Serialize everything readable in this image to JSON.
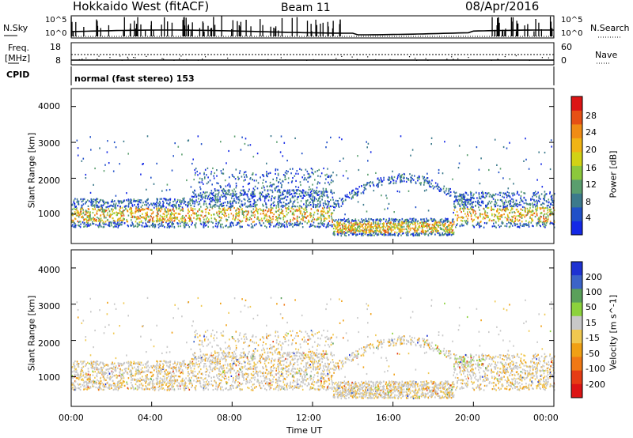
{
  "header": {
    "station": "Hokkaido West (fitACF)",
    "beam": "Beam 11",
    "date": "08/Apr/2016"
  },
  "side_labels": {
    "nsky": "N.Sky",
    "nsearch": "N.Search",
    "freq_line1": "Freq.",
    "freq_line2": "[MHz]",
    "nave": "Nave",
    "cpid": "CPID"
  },
  "noise_panel": {
    "left_ticks": [
      "10^5",
      "10^0"
    ],
    "right_ticks": [
      "10^5",
      "10^0"
    ]
  },
  "freq_panel": {
    "left_ticks": [
      "18",
      "8"
    ],
    "right_ticks": [
      "60",
      "0"
    ]
  },
  "cpid_panel": {
    "label": "normal (fast stereo) 153"
  },
  "chart_data": [
    {
      "type": "heatmap",
      "name": "power",
      "ylabel": "Slant Range [km]",
      "yticks": [
        "1000",
        "2000",
        "3000",
        "4000"
      ],
      "ylim": [
        180,
        4500
      ],
      "colorbar_label": "Power [dB]",
      "colorbar_ticks": [
        "4",
        "8",
        "12",
        "16",
        "20",
        "24",
        "28"
      ],
      "colorbar_colors": [
        "#1428e6",
        "#2050c8",
        "#3c7a8c",
        "#5a9e6e",
        "#8cc83c",
        "#d2d214",
        "#f0b414",
        "#f08c14",
        "#e65014",
        "#dc1414"
      ],
      "scatter_regions": [
        {
          "range_km": [
            600,
            1600
          ],
          "time_ut": [
            0,
            13.5
          ],
          "level": "strong"
        },
        {
          "range_km": [
            1300,
            2300
          ],
          "time_ut": [
            6,
            13.5
          ],
          "level": "moderate"
        },
        {
          "range_km": [
            400,
            900
          ],
          "time_ut": [
            13,
            19
          ],
          "level": "strong"
        },
        {
          "range_km": [
            1600,
            2600
          ],
          "time_ut": [
            13,
            20
          ],
          "level": "weak"
        },
        {
          "range_km": [
            600,
            1700
          ],
          "time_ut": [
            19,
            24
          ],
          "level": "strong"
        }
      ]
    },
    {
      "type": "heatmap",
      "name": "velocity",
      "ylabel": "Slant Range [km]",
      "yticks": [
        "1000",
        "2000",
        "3000",
        "4000"
      ],
      "ylim": [
        180,
        4500
      ],
      "colorbar_label": "Velocity [m s^-1]",
      "colorbar_ticks": [
        "200",
        "100",
        "50",
        "15",
        "-15",
        "-50",
        "-100",
        "-200"
      ],
      "colorbar_colors": [
        "#1e32d2",
        "#3c64c8",
        "#5aa05a",
        "#8cd23c",
        "#c8c8c8",
        "#f0c850",
        "#f0a014",
        "#f07814",
        "#e63c14",
        "#dc1414"
      ]
    }
  ],
  "x_axis": {
    "ticks": [
      "00:00",
      "04:00",
      "08:00",
      "12:00",
      "16:00",
      "20:00",
      "00:00"
    ],
    "label": "Time UT"
  }
}
